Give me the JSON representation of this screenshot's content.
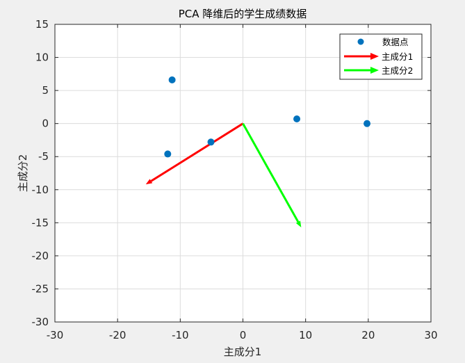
{
  "chart_data": {
    "type": "scatter",
    "title": "PCA 降维后的学生成绩数据",
    "xlabel": "主成分1",
    "ylabel": "主成分2",
    "xlim": [
      -30,
      30
    ],
    "ylim": [
      -30,
      15
    ],
    "xticks": [
      "-30",
      "-20",
      "-10",
      "0",
      "10",
      "20",
      "30"
    ],
    "yticks": [
      "15",
      "10",
      "5",
      "0",
      "-5",
      "-10",
      "-15",
      "-20",
      "-25",
      "-30"
    ],
    "xtick_values": [
      -30,
      -20,
      -10,
      0,
      10,
      20,
      30
    ],
    "ytick_values": [
      15,
      10,
      5,
      0,
      -5,
      -10,
      -15,
      -20,
      -25,
      -30
    ],
    "grid": true,
    "legend_position": "top-right",
    "points": {
      "name": "数据点",
      "color": "#0072BD",
      "x": [
        -11.3,
        -12.0,
        -5.1,
        8.6,
        19.8
      ],
      "y": [
        6.6,
        -4.6,
        -2.8,
        0.7,
        0.0
      ]
    },
    "vectors": [
      {
        "name": "主成分1",
        "color": "#FF0000",
        "x0": 0,
        "y0": 0,
        "x1": -15.5,
        "y1": -9.2
      },
      {
        "name": "主成分2",
        "color": "#00FF00",
        "x0": 0,
        "y0": 0,
        "x1": 9.3,
        "y1": -15.7
      }
    ]
  }
}
